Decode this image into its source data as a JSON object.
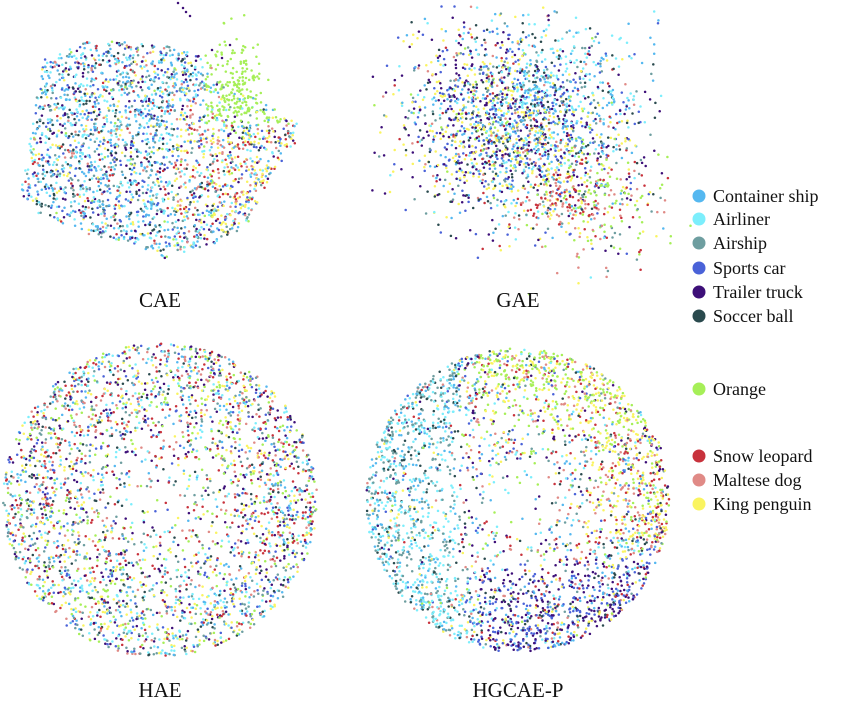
{
  "chart_data": [
    {
      "type": "scatter",
      "title": "CAE",
      "shape": "blob",
      "note_class_mix": "blue/cyan dominant, orange cluster upper-right, yellow/pink center-right"
    },
    {
      "type": "scatter",
      "title": "GAE",
      "shape": "diffuse-blob",
      "note_class_mix": "mixed, orange and snow leopard lower-right"
    },
    {
      "type": "scatter",
      "title": "HAE",
      "shape": "poincare-disk",
      "note_class_mix": "uniformly mixed"
    },
    {
      "type": "scatter",
      "title": "HGCAE-P",
      "shape": "poincare-disk",
      "note_class_mix": "airship/airliner left, orange/penguin top-right, trucks bottom-right"
    }
  ],
  "legend": [
    {
      "label": "Container ship",
      "color": "#55b8f0",
      "group": 1
    },
    {
      "label": "Airliner",
      "color": "#7ceefc",
      "group": 1
    },
    {
      "label": "Airship",
      "color": "#6e9ea0",
      "group": 1
    },
    {
      "label": "Sports car",
      "color": "#4a62d8",
      "group": 1
    },
    {
      "label": "Trailer truck",
      "color": "#3d0f78",
      "group": 1
    },
    {
      "label": "Soccer ball",
      "color": "#2a4a4e",
      "group": 1
    },
    {
      "label": "Orange",
      "color": "#a6ef58",
      "group": 2
    },
    {
      "label": "Snow leopard",
      "color": "#c8323c",
      "group": 3
    },
    {
      "label": "Maltese dog",
      "color": "#e08a86",
      "group": 3
    },
    {
      "label": "King penguin",
      "color": "#faf460",
      "group": 3
    }
  ]
}
